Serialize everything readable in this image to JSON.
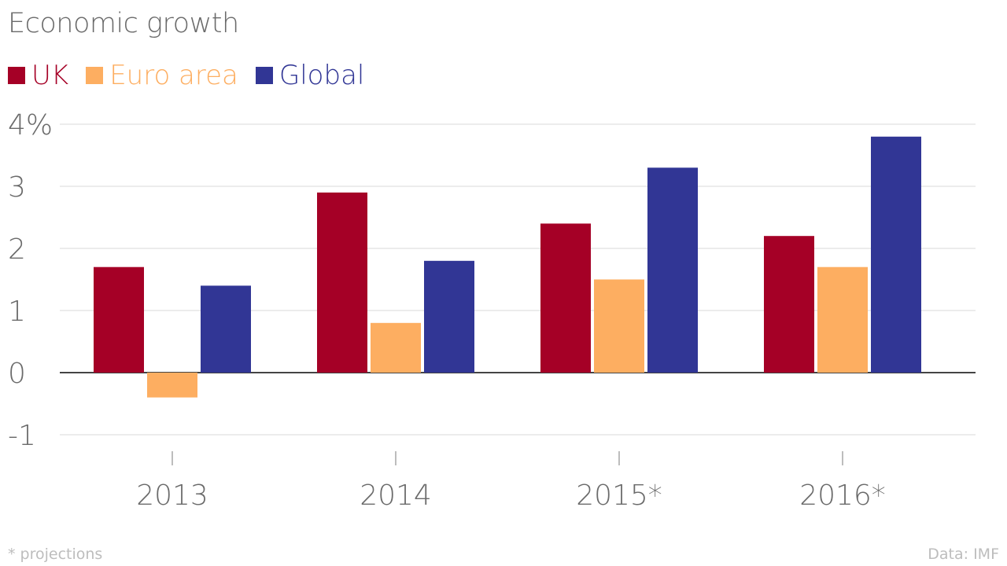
{
  "chart_data": {
    "type": "bar",
    "title": "Economic growth",
    "categories": [
      "2013",
      "2014",
      "2015*",
      "2016*"
    ],
    "series": [
      {
        "name": "UK",
        "color": "#A50026",
        "values": [
          1.7,
          2.9,
          2.4,
          2.2
        ]
      },
      {
        "name": "Euro area",
        "color": "#FDAE61",
        "values": [
          -0.4,
          0.8,
          1.5,
          1.7
        ]
      },
      {
        "name": "Global",
        "color": "#313695",
        "values": [
          1.4,
          1.8,
          3.3,
          3.8
        ]
      }
    ],
    "ylim": [
      -1,
      4
    ],
    "yticks": [
      "4%",
      "3",
      "2",
      "1",
      "0",
      "-1"
    ],
    "ytick_values": [
      4,
      3,
      2,
      1,
      0,
      -1
    ],
    "grid": true,
    "legend_position": "top-left",
    "footnote": "* projections",
    "source": "Data: IMF"
  }
}
